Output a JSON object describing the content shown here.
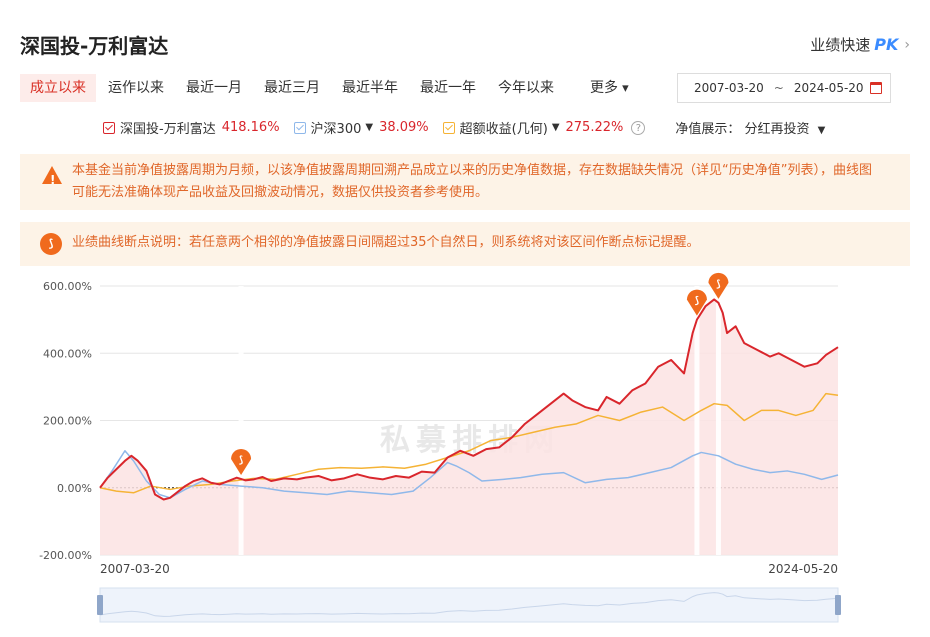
{
  "header": {
    "title": "深国投-万利富达",
    "pk_label": "业绩快速",
    "pk_mark": "PK",
    "pk_chevron": "›"
  },
  "tabs": [
    {
      "label": "成立以来",
      "active": true
    },
    {
      "label": "运作以来"
    },
    {
      "label": "最近一月"
    },
    {
      "label": "最近三月"
    },
    {
      "label": "最近半年"
    },
    {
      "label": "最近一年"
    },
    {
      "label": "今年以来"
    },
    {
      "label": "更多"
    }
  ],
  "date_range": {
    "start": "2007-03-20",
    "sep": "~",
    "end": "2024-05-20"
  },
  "legend": [
    {
      "name": "深国投-万利富达",
      "value": "418.16%",
      "color": "#d9262c"
    },
    {
      "name": "沪深300",
      "value": "38.09%",
      "color": "#8fb8ea",
      "caret": "▼"
    },
    {
      "name": "超额收益(几何)",
      "value": "275.22%",
      "color": "#f5b335",
      "caret": "▼"
    }
  ],
  "help": "?",
  "nav_display": {
    "label": "净值展示：",
    "value": "分红再投资",
    "caret": "▼"
  },
  "notices": {
    "warning": "本基金当前净值披露周期为月频，以该净值披露周期回溯产品成立以来的历史净值数据，存在数据缺失情况（详见“历史净值”列表），曲线图可能无法准确体现产品收益及回撤波动情况，数据仅供投资者参考使用。",
    "break_icon": "⟆",
    "breakpoint": "业绩曲线断点说明：若任意两个相邻的净值披露日间隔超过35个自然日，则系统将对该区间作断点标记提醒。"
  },
  "watermark": "私募排排网",
  "chart_data": {
    "type": "line",
    "ylim": [
      -200,
      600
    ],
    "yticks": [
      "600.00%",
      "400.00%",
      "200.00%",
      "0.00%",
      "-200.00%"
    ],
    "ytick_values": [
      600,
      400,
      200,
      0,
      -200
    ],
    "x_start_label": "2007-03-20",
    "x_end_label": "2024-05-20",
    "xlim": [
      2007.22,
      2024.38
    ],
    "grid": true,
    "series": [
      {
        "name": "深国投-万利富达",
        "color": "#d9262c",
        "fill": "#fbe3e3",
        "x": [
          2007.22,
          2007.4,
          2007.6,
          2007.8,
          2007.95,
          2008.1,
          2008.3,
          2008.5,
          2008.7,
          2008.85,
          2009.0,
          2009.2,
          2009.4,
          2009.6,
          2009.8,
          2010.0,
          2010.2,
          2010.4,
          2010.6,
          2010.8,
          2011.0,
          2011.2,
          2011.5,
          2011.8,
          2012.0,
          2012.3,
          2012.6,
          2012.9,
          2013.2,
          2013.5,
          2013.8,
          2014.1,
          2014.4,
          2014.7,
          2015.0,
          2015.3,
          2015.6,
          2015.9,
          2016.2,
          2016.5,
          2016.8,
          2017.1,
          2017.4,
          2017.7,
          2018.0,
          2018.2,
          2018.5,
          2018.8,
          2019.0,
          2019.3,
          2019.6,
          2019.9,
          2020.2,
          2020.5,
          2020.8,
          2021.0,
          2021.1,
          2021.3,
          2021.5,
          2021.6,
          2021.7,
          2021.8,
          2022.0,
          2022.2,
          2022.5,
          2022.8,
          2023.0,
          2023.3,
          2023.6,
          2023.9,
          2024.1,
          2024.38
        ],
        "values": [
          0,
          30,
          55,
          80,
          95,
          80,
          50,
          -20,
          -35,
          -30,
          -15,
          5,
          20,
          28,
          15,
          10,
          20,
          30,
          22,
          25,
          32,
          20,
          28,
          25,
          30,
          35,
          22,
          28,
          40,
          30,
          25,
          35,
          30,
          48,
          45,
          90,
          110,
          95,
          115,
          120,
          150,
          190,
          220,
          250,
          280,
          260,
          240,
          230,
          270,
          250,
          290,
          310,
          360,
          380,
          340,
          460,
          500,
          540,
          560,
          550,
          520,
          460,
          480,
          430,
          410,
          390,
          400,
          380,
          360,
          370,
          395,
          418
        ]
      },
      {
        "name": "沪深300",
        "color": "#8fb8ea",
        "x": [
          2007.22,
          2007.5,
          2007.8,
          2008.0,
          2008.3,
          2008.6,
          2008.85,
          2009.2,
          2009.6,
          2010.0,
          2010.5,
          2011.0,
          2011.5,
          2012.0,
          2012.5,
          2013.0,
          2013.5,
          2014.0,
          2014.5,
          2014.9,
          2015.3,
          2015.5,
          2015.8,
          2016.1,
          2016.6,
          2017.0,
          2017.5,
          2018.0,
          2018.5,
          2019.0,
          2019.5,
          2020.0,
          2020.5,
          2021.0,
          2021.2,
          2021.6,
          2022.0,
          2022.4,
          2022.8,
          2023.2,
          2023.6,
          2024.0,
          2024.38
        ],
        "values": [
          0,
          50,
          110,
          80,
          20,
          -20,
          -30,
          -5,
          20,
          10,
          5,
          0,
          -10,
          -15,
          -20,
          -10,
          -15,
          -20,
          -10,
          30,
          75,
          65,
          45,
          20,
          25,
          30,
          40,
          45,
          15,
          25,
          30,
          45,
          60,
          95,
          105,
          95,
          70,
          55,
          45,
          50,
          40,
          25,
          38
        ]
      },
      {
        "name": "超额收益(几何)",
        "color": "#f5b335",
        "x": [
          2007.22,
          2007.6,
          2008.0,
          2008.4,
          2008.85,
          2009.3,
          2009.8,
          2010.3,
          2010.8,
          2011.3,
          2011.8,
          2012.3,
          2012.8,
          2013.3,
          2013.8,
          2014.3,
          2014.8,
          2015.3,
          2015.8,
          2016.3,
          2016.8,
          2017.3,
          2017.8,
          2018.3,
          2018.8,
          2019.3,
          2019.8,
          2020.3,
          2020.8,
          2021.2,
          2021.5,
          2021.8,
          2022.2,
          2022.6,
          2023.0,
          2023.4,
          2023.8,
          2024.1,
          2024.38
        ],
        "values": [
          0,
          -10,
          -15,
          5,
          -5,
          5,
          10,
          20,
          28,
          25,
          40,
          55,
          60,
          58,
          62,
          58,
          70,
          90,
          110,
          140,
          150,
          165,
          180,
          190,
          215,
          200,
          225,
          240,
          200,
          230,
          250,
          245,
          200,
          230,
          230,
          215,
          230,
          280,
          275
        ]
      }
    ],
    "breakpoints": [
      2010.5,
      2021.1,
      2021.6
    ],
    "marker_icon": "⟆"
  }
}
